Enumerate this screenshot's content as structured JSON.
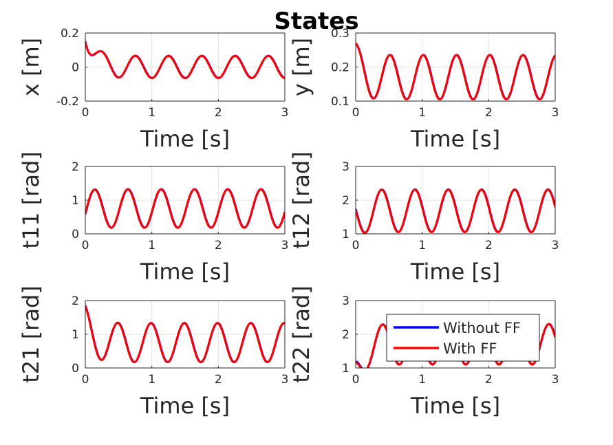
{
  "figure": {
    "title": "States"
  },
  "legend": {
    "items": [
      {
        "label": "Without FF",
        "color": "#0000ff"
      },
      {
        "label": "With FF",
        "color": "#ff0000"
      }
    ]
  },
  "chart_data": [
    {
      "type": "line",
      "ylabel": "x [m]",
      "xlabel": "Time [s]",
      "xlim": [
        0,
        3
      ],
      "ylim": [
        -0.2,
        0.2
      ],
      "grid": true,
      "xticks": [
        "0",
        "1",
        "2",
        "3"
      ],
      "yticks": [
        "-0.2",
        "0",
        "0.2"
      ],
      "signal": {
        "initial": 0.15,
        "offset": 0.0,
        "amplitude": 0.065,
        "period": 0.5,
        "phase_deg": -90,
        "transient_s": 0.35
      },
      "series": [
        {
          "name": "Without FF"
        },
        {
          "name": "With FF"
        }
      ]
    },
    {
      "type": "line",
      "ylabel": "y [m]",
      "xlabel": "Time [s]",
      "xlim": [
        0,
        3
      ],
      "ylim": [
        0.1,
        0.3
      ],
      "grid": true,
      "xticks": [
        "0",
        "1",
        "2",
        "3"
      ],
      "yticks": [
        "0.1",
        "0.2",
        "0.3"
      ],
      "signal": {
        "initial": 0.27,
        "offset": 0.17,
        "amplitude": 0.065,
        "period": 0.5,
        "phase_deg": 80,
        "transient_s": 0.3
      },
      "series": [
        {
          "name": "Without FF"
        },
        {
          "name": "With FF"
        }
      ]
    },
    {
      "type": "line",
      "ylabel": "t11 [rad]",
      "xlabel": "Time [s]",
      "xlim": [
        0,
        3
      ],
      "ylim": [
        0,
        2
      ],
      "grid": true,
      "xticks": [
        "0",
        "1",
        "2",
        "3"
      ],
      "yticks": [
        "0",
        "1",
        "2"
      ],
      "signal": {
        "initial": 0.6,
        "offset": 0.75,
        "amplitude": 0.57,
        "period": 0.5,
        "phase_deg": -10,
        "transient_s": 0.25
      },
      "series": [
        {
          "name": "Without FF"
        },
        {
          "name": "With FF"
        }
      ]
    },
    {
      "type": "line",
      "ylabel": "t12 [rad]",
      "xlabel": "Time [s]",
      "xlim": [
        0,
        3
      ],
      "ylim": [
        1,
        3
      ],
      "grid": true,
      "xticks": [
        "0",
        "1",
        "2",
        "3"
      ],
      "yticks": [
        "1",
        "2",
        "3"
      ],
      "signal": {
        "initial": 1.7,
        "offset": 1.68,
        "amplitude": 0.63,
        "period": 0.5,
        "phase_deg": -190,
        "transient_s": 0.3
      },
      "series": [
        {
          "name": "Without FF"
        },
        {
          "name": "With FF"
        }
      ]
    },
    {
      "type": "line",
      "ylabel": "t21 [rad]",
      "xlabel": "Time [s]",
      "xlim": [
        0,
        3
      ],
      "ylim": [
        0,
        2
      ],
      "grid": true,
      "xticks": [
        "0",
        "1",
        "2",
        "3"
      ],
      "yticks": [
        "0",
        "1",
        "2"
      ],
      "signal": {
        "initial": 1.85,
        "offset": 0.75,
        "amplitude": 0.58,
        "period": 0.5,
        "phase_deg": 100,
        "transient_s": 0.35
      },
      "series": [
        {
          "name": "Without FF"
        },
        {
          "name": "With FF"
        }
      ]
    },
    {
      "type": "line",
      "ylabel": "t22 [rad]",
      "xlabel": "Time [s]",
      "xlim": [
        0,
        3
      ],
      "ylim": [
        1,
        3
      ],
      "grid": true,
      "xticks": [
        "0",
        "1",
        "2",
        "3"
      ],
      "yticks": [
        "1",
        "2",
        "3"
      ],
      "signal": {
        "initial": 1.15,
        "offset": 1.7,
        "amplitude": 0.6,
        "period": 0.5,
        "phase_deg": -200,
        "transient_s": 0.3
      },
      "series": [
        {
          "name": "Without FF"
        },
        {
          "name": "With FF"
        }
      ]
    }
  ]
}
